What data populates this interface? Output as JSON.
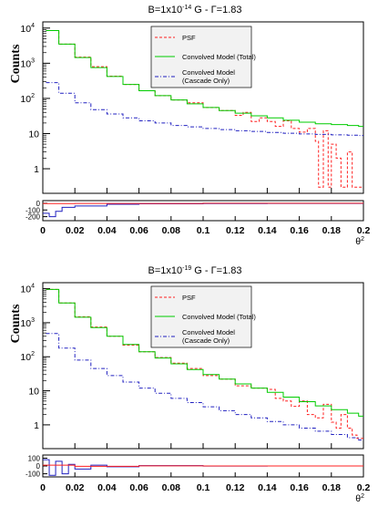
{
  "chart_data": [
    {
      "type": "line",
      "title_parts": [
        "B=1x10",
        "-14",
        " G - Γ=1.83"
      ],
      "ylabel": "Counts",
      "xlabel": "θ",
      "xlabel_sup": "2",
      "xlim": [
        0,
        0.2
      ],
      "ylim_log": [
        0.2,
        15000
      ],
      "x_ticks": [
        "0",
        "0.02",
        "0.04",
        "0.06",
        "0.08",
        "0.1",
        "0.12",
        "0.14",
        "0.16",
        "0.18",
        "0.2"
      ],
      "y_ticks": [
        {
          "value": 1,
          "base": "1",
          "exp": ""
        },
        {
          "value": 10,
          "base": "10",
          "exp": ""
        },
        {
          "value": 100,
          "base": "10",
          "exp": "2"
        },
        {
          "value": 1000,
          "base": "10",
          "exp": "3"
        },
        {
          "value": 10000,
          "base": "10",
          "exp": "4"
        }
      ],
      "legend": [
        "PSF",
        "Convolved Model (Total)",
        "Convolved Model",
        "(Cascade Only)"
      ],
      "series": [
        {
          "name": "PSF",
          "color": "#ff2020",
          "style": "dashed",
          "x": [
            0.002,
            0.01,
            0.02,
            0.03,
            0.04,
            0.05,
            0.06,
            0.07,
            0.08,
            0.09,
            0.1,
            0.11,
            0.12,
            0.125,
            0.13,
            0.135,
            0.14,
            0.145,
            0.15,
            0.155,
            0.16,
            0.165,
            0.17,
            0.172,
            0.175,
            0.178,
            0.18,
            0.183,
            0.186,
            0.19,
            0.193,
            0.196
          ],
          "y": [
            8500,
            3500,
            1500,
            800,
            430,
            250,
            165,
            120,
            90,
            75,
            55,
            45,
            33,
            40,
            22,
            28,
            22,
            16,
            23,
            14,
            11,
            14,
            6,
            0.3,
            12,
            0.3,
            5,
            2,
            0.3,
            3,
            0.3,
            0.3
          ]
        },
        {
          "name": "Convolved Model (Total)",
          "color": "#00cc00",
          "style": "solid",
          "x": [
            0.002,
            0.01,
            0.02,
            0.03,
            0.04,
            0.05,
            0.06,
            0.07,
            0.08,
            0.09,
            0.1,
            0.11,
            0.12,
            0.13,
            0.14,
            0.15,
            0.16,
            0.17,
            0.18,
            0.19,
            0.197
          ],
          "y": [
            8500,
            3500,
            1450,
            750,
            420,
            250,
            165,
            120,
            90,
            70,
            55,
            45,
            38,
            32,
            28,
            24,
            21,
            19,
            18,
            17,
            16
          ]
        },
        {
          "name": "Convolved Model (Cascade Only)",
          "color": "#2020c0",
          "style": "dashdot",
          "x": [
            0.002,
            0.01,
            0.02,
            0.03,
            0.04,
            0.05,
            0.06,
            0.07,
            0.08,
            0.09,
            0.1,
            0.11,
            0.12,
            0.13,
            0.14,
            0.15,
            0.16,
            0.17,
            0.18,
            0.19,
            0.197
          ],
          "y": [
            280,
            140,
            75,
            48,
            36,
            28,
            23,
            20,
            17,
            15.5,
            14,
            13,
            12,
            11.5,
            10.8,
            10.2,
            9.8,
            9.5,
            9.2,
            9,
            8.8
          ]
        }
      ],
      "residual": {
        "ylim": [
          -260,
          40
        ],
        "y_ticks": [
          "0",
          "-100",
          "-200"
        ],
        "y_tick_values": [
          0,
          -100,
          -200
        ],
        "series": [
          {
            "color": "#2020c0",
            "x": [
              0.0,
              0.004,
              0.008,
              0.012,
              0.02,
              0.04,
              0.06,
              0.1,
              0.14,
              0.18,
              0.197
            ],
            "y": [
              -150,
              -200,
              -120,
              -60,
              -40,
              -15,
              -8,
              -5,
              -3,
              -2,
              -2
            ]
          },
          {
            "color": "#ff2020",
            "x": [
              0.0,
              0.02,
              0.06,
              0.1,
              0.14,
              0.18,
              0.197
            ],
            "y": [
              -5,
              -3,
              -2,
              0,
              0,
              0,
              0
            ]
          }
        ]
      }
    },
    {
      "type": "line",
      "title_parts": [
        "B=1x10",
        "-19",
        " G - Γ=1.83"
      ],
      "ylabel": "Counts",
      "xlabel": "θ",
      "xlabel_sup": "2",
      "xlim": [
        0,
        0.2
      ],
      "ylim_log": [
        0.2,
        15000
      ],
      "x_ticks": [
        "0",
        "0.02",
        "0.04",
        "0.06",
        "0.08",
        "0.1",
        "0.12",
        "0.14",
        "0.16",
        "0.18",
        "0.2"
      ],
      "y_ticks": [
        {
          "value": 1,
          "base": "1",
          "exp": ""
        },
        {
          "value": 10,
          "base": "10",
          "exp": ""
        },
        {
          "value": 100,
          "base": "10",
          "exp": "2"
        },
        {
          "value": 1000,
          "base": "10",
          "exp": "3"
        },
        {
          "value": 10000,
          "base": "10",
          "exp": "4"
        }
      ],
      "legend": [
        "PSF",
        "Convolved Model (Total)",
        "Convolved Model",
        "(Cascade Only)"
      ],
      "series": [
        {
          "name": "PSF",
          "color": "#ff2020",
          "style": "dashed",
          "x": [
            0.002,
            0.01,
            0.02,
            0.03,
            0.04,
            0.05,
            0.06,
            0.07,
            0.08,
            0.09,
            0.1,
            0.11,
            0.12,
            0.13,
            0.14,
            0.145,
            0.15,
            0.155,
            0.16,
            0.165,
            0.17,
            0.175,
            0.18,
            0.183,
            0.186,
            0.19,
            0.193,
            0.196
          ],
          "y": [
            9500,
            3800,
            1500,
            750,
            400,
            220,
            140,
            95,
            65,
            45,
            28,
            22,
            14,
            12,
            11,
            6,
            5,
            3.5,
            5,
            2,
            1.6,
            4,
            1.2,
            0.8,
            2,
            0.8,
            0.5,
            0.4
          ]
        },
        {
          "name": "Convolved Model (Total)",
          "color": "#00cc00",
          "style": "solid",
          "x": [
            0.002,
            0.01,
            0.02,
            0.03,
            0.04,
            0.05,
            0.06,
            0.07,
            0.08,
            0.09,
            0.1,
            0.11,
            0.12,
            0.13,
            0.14,
            0.15,
            0.16,
            0.17,
            0.18,
            0.19,
            0.197
          ],
          "y": [
            9500,
            3800,
            1450,
            720,
            400,
            230,
            140,
            92,
            62,
            42,
            30,
            22,
            16,
            12,
            9,
            6.5,
            4.8,
            3.6,
            2.8,
            2.2,
            1.8
          ]
        },
        {
          "name": "Convolved Model (Cascade Only)",
          "color": "#2020c0",
          "style": "dashdot",
          "x": [
            0.002,
            0.01,
            0.02,
            0.03,
            0.04,
            0.05,
            0.06,
            0.07,
            0.08,
            0.09,
            0.1,
            0.11,
            0.12,
            0.13,
            0.14,
            0.15,
            0.16,
            0.17,
            0.18,
            0.19,
            0.197
          ],
          "y": [
            480,
            180,
            80,
            45,
            28,
            18,
            12,
            8.5,
            6,
            4.5,
            3.4,
            2.6,
            2.0,
            1.6,
            1.25,
            1.0,
            0.8,
            0.65,
            0.52,
            0.42,
            0.36
          ]
        }
      ],
      "residual": {
        "ylim": [
          -140,
          140
        ],
        "y_ticks": [
          "100",
          "0",
          "-100"
        ],
        "y_tick_values": [
          100,
          0,
          -100
        ],
        "series": [
          {
            "color": "#2020c0",
            "x": [
              0.0,
              0.004,
              0.008,
              0.012,
              0.016,
              0.02,
              0.03,
              0.04,
              0.06,
              0.1,
              0.14,
              0.18,
              0.197
            ],
            "y": [
              80,
              -120,
              60,
              -100,
              20,
              -40,
              10,
              -10,
              5,
              -2,
              0,
              0,
              0
            ]
          },
          {
            "color": "#ff2020",
            "x": [
              0.0,
              0.02,
              0.06,
              0.1,
              0.14,
              0.18,
              0.197
            ],
            "y": [
              10,
              -5,
              2,
              0,
              0,
              0,
              0
            ]
          }
        ]
      }
    }
  ]
}
